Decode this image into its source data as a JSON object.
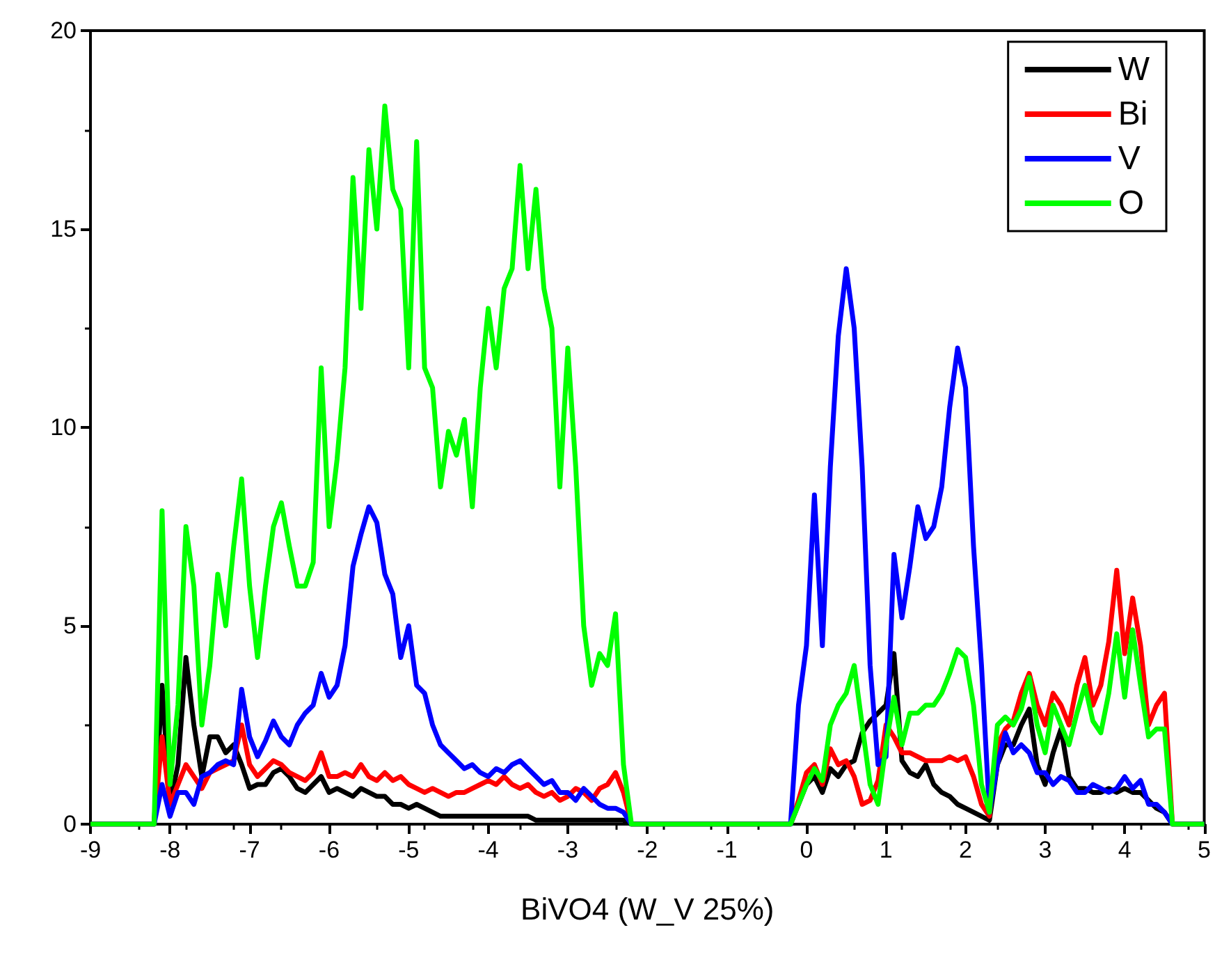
{
  "chart_data": {
    "type": "line",
    "xlabel": "BiVO4 (W_V 25%)",
    "x": [
      -9,
      -8.3,
      -8.2,
      -8.1,
      -8.0,
      -7.9,
      -7.8,
      -7.7,
      -7.6,
      -7.5,
      -7.4,
      -7.3,
      -7.2,
      -7.1,
      -7.0,
      -6.9,
      -6.8,
      -6.7,
      -6.6,
      -6.5,
      -6.4,
      -6.3,
      -6.2,
      -6.1,
      -6.0,
      -5.9,
      -5.8,
      -5.7,
      -5.6,
      -5.5,
      -5.4,
      -5.3,
      -5.2,
      -5.1,
      -5.0,
      -4.9,
      -4.8,
      -4.7,
      -4.6,
      -4.5,
      -4.4,
      -4.3,
      -4.2,
      -4.1,
      -4.0,
      -3.9,
      -3.8,
      -3.7,
      -3.6,
      -3.5,
      -3.4,
      -3.3,
      -3.2,
      -3.1,
      -3.0,
      -2.9,
      -2.8,
      -2.7,
      -2.6,
      -2.5,
      -2.4,
      -2.3,
      -2.2,
      -0.3,
      -0.2,
      -0.1,
      0.0,
      0.1,
      0.2,
      0.3,
      0.4,
      0.5,
      0.6,
      0.7,
      0.8,
      0.9,
      1.0,
      1.1,
      1.2,
      1.3,
      1.4,
      1.5,
      1.6,
      1.7,
      1.8,
      1.9,
      2.0,
      2.1,
      2.2,
      2.3,
      2.4,
      2.5,
      2.6,
      2.7,
      2.8,
      2.9,
      3.0,
      3.1,
      3.2,
      3.3,
      3.4,
      3.5,
      3.6,
      3.7,
      3.8,
      3.9,
      4.0,
      4.1,
      4.2,
      4.3,
      4.4,
      4.5,
      4.6,
      5
    ],
    "series": [
      {
        "name": "W",
        "color": "#000000",
        "values": [
          0,
          0,
          0,
          3.5,
          0.5,
          1.5,
          4.2,
          2.5,
          1.2,
          2.2,
          2.2,
          1.8,
          2.0,
          1.5,
          0.9,
          1.0,
          1.0,
          1.3,
          1.4,
          1.2,
          0.9,
          0.8,
          1.0,
          1.2,
          0.8,
          0.9,
          0.8,
          0.7,
          0.9,
          0.8,
          0.7,
          0.7,
          0.5,
          0.5,
          0.4,
          0.5,
          0.4,
          0.3,
          0.2,
          0.2,
          0.2,
          0.2,
          0.2,
          0.2,
          0.2,
          0.2,
          0.2,
          0.2,
          0.2,
          0.2,
          0.1,
          0.1,
          0.1,
          0.1,
          0.1,
          0.1,
          0.1,
          0.1,
          0.1,
          0.1,
          0.1,
          0.1,
          0,
          0,
          0,
          0.5,
          1.0,
          1.2,
          0.8,
          1.4,
          1.2,
          1.5,
          1.6,
          2.3,
          2.6,
          2.8,
          3.0,
          4.3,
          1.6,
          1.3,
          1.2,
          1.5,
          1.0,
          0.8,
          0.7,
          0.5,
          0.4,
          0.3,
          0.2,
          0.1,
          1.5,
          2.0,
          2.0,
          2.5,
          2.9,
          1.5,
          1.0,
          1.8,
          2.4,
          1.2,
          0.9,
          0.9,
          0.8,
          0.8,
          0.9,
          0.8,
          0.9,
          0.8,
          0.8,
          0.6,
          0.4,
          0.3,
          0,
          0
        ]
      },
      {
        "name": "Bi",
        "color": "#ff0000",
        "values": [
          0,
          0,
          0,
          2.2,
          0.5,
          1.0,
          1.5,
          1.2,
          0.9,
          1.3,
          1.4,
          1.5,
          1.6,
          2.5,
          1.5,
          1.2,
          1.4,
          1.6,
          1.5,
          1.3,
          1.2,
          1.1,
          1.3,
          1.8,
          1.2,
          1.2,
          1.3,
          1.2,
          1.5,
          1.2,
          1.1,
          1.3,
          1.1,
          1.2,
          1.0,
          0.9,
          0.8,
          0.9,
          0.8,
          0.7,
          0.8,
          0.8,
          0.9,
          1.0,
          1.1,
          1.0,
          1.2,
          1.0,
          0.9,
          1.0,
          0.8,
          0.7,
          0.8,
          0.6,
          0.7,
          0.9,
          0.8,
          0.6,
          0.9,
          1.0,
          1.3,
          0.8,
          0,
          0,
          0,
          0.6,
          1.3,
          1.5,
          1.0,
          1.9,
          1.5,
          1.6,
          1.2,
          0.5,
          0.6,
          1.1,
          2.5,
          2.2,
          1.8,
          1.8,
          1.7,
          1.6,
          1.6,
          1.6,
          1.7,
          1.6,
          1.7,
          1.2,
          0.5,
          0.2,
          2.0,
          2.4,
          2.6,
          3.3,
          3.8,
          3.0,
          2.5,
          3.3,
          3.0,
          2.5,
          3.5,
          4.2,
          3.0,
          3.5,
          4.6,
          6.4,
          4.3,
          5.7,
          4.5,
          2.5,
          3.0,
          3.3,
          0,
          0
        ]
      },
      {
        "name": "V",
        "color": "#0000ff",
        "values": [
          0,
          0,
          0,
          1.0,
          0.2,
          0.8,
          0.8,
          0.5,
          1.2,
          1.3,
          1.5,
          1.6,
          1.5,
          3.4,
          2.2,
          1.7,
          2.1,
          2.6,
          2.2,
          2.0,
          2.5,
          2.8,
          3.0,
          3.8,
          3.2,
          3.5,
          4.5,
          6.5,
          7.3,
          8.0,
          7.6,
          6.3,
          5.8,
          4.2,
          5.0,
          3.5,
          3.3,
          2.5,
          2.0,
          1.8,
          1.6,
          1.4,
          1.5,
          1.3,
          1.2,
          1.4,
          1.3,
          1.5,
          1.6,
          1.4,
          1.2,
          1.0,
          1.1,
          0.8,
          0.8,
          0.6,
          0.9,
          0.7,
          0.5,
          0.4,
          0.4,
          0.3,
          0,
          0,
          0,
          3.0,
          4.5,
          8.3,
          4.5,
          9.0,
          12.3,
          14.0,
          12.5,
          9.0,
          4.0,
          1.5,
          1.7,
          6.8,
          5.2,
          6.5,
          8.0,
          7.2,
          7.5,
          8.5,
          10.5,
          12.0,
          11.0,
          7.0,
          4.0,
          0.3,
          1.5,
          2.3,
          1.8,
          2.0,
          1.8,
          1.3,
          1.3,
          1.0,
          1.2,
          1.1,
          0.8,
          0.8,
          1.0,
          0.9,
          0.8,
          0.9,
          1.2,
          0.9,
          1.1,
          0.5,
          0.5,
          0.3,
          0,
          0
        ]
      },
      {
        "name": "O",
        "color": "#00ff00",
        "values": [
          0,
          0,
          0,
          7.9,
          1,
          3,
          7.5,
          6,
          2.5,
          4,
          6.3,
          5,
          7,
          8.7,
          6,
          4.2,
          6,
          7.5,
          8.1,
          7,
          6,
          6,
          6.6,
          11.5,
          7.5,
          9.2,
          11.5,
          16.3,
          13,
          17,
          15,
          18.1,
          16,
          15.5,
          11.5,
          17.2,
          11.5,
          11,
          8.5,
          9.9,
          9.3,
          10.2,
          8,
          11,
          13,
          11.5,
          13.5,
          14,
          16.6,
          14,
          16,
          13.5,
          12.5,
          8.5,
          12,
          9,
          5,
          3.5,
          4.3,
          4,
          5.3,
          1.5,
          0,
          0,
          0,
          0.5,
          1.0,
          1.4,
          1.1,
          2.5,
          3.0,
          3.3,
          4.0,
          2.5,
          1.0,
          0.5,
          2.0,
          3.2,
          2.0,
          2.8,
          2.8,
          3.0,
          3.0,
          3.3,
          3.8,
          4.4,
          4.2,
          3.0,
          1.0,
          0.3,
          2.5,
          2.7,
          2.5,
          2.9,
          3.7,
          2.5,
          1.8,
          3.0,
          2.5,
          2.0,
          2.8,
          3.5,
          2.6,
          2.3,
          3.3,
          4.8,
          3.2,
          4.9,
          3.5,
          2.2,
          2.4,
          2.4,
          0,
          0
        ]
      }
    ],
    "xlim": [
      -9,
      5
    ],
    "xticks": [
      -9,
      -8,
      -7,
      -6,
      -5,
      -4,
      -3,
      -2,
      -1,
      0,
      1,
      2,
      3,
      4,
      5
    ],
    "ylim": [
      0,
      20
    ],
    "yticks": [
      0,
      5,
      10,
      15,
      20
    ],
    "legend": "top right",
    "line_style": "solid",
    "marker": "none"
  }
}
